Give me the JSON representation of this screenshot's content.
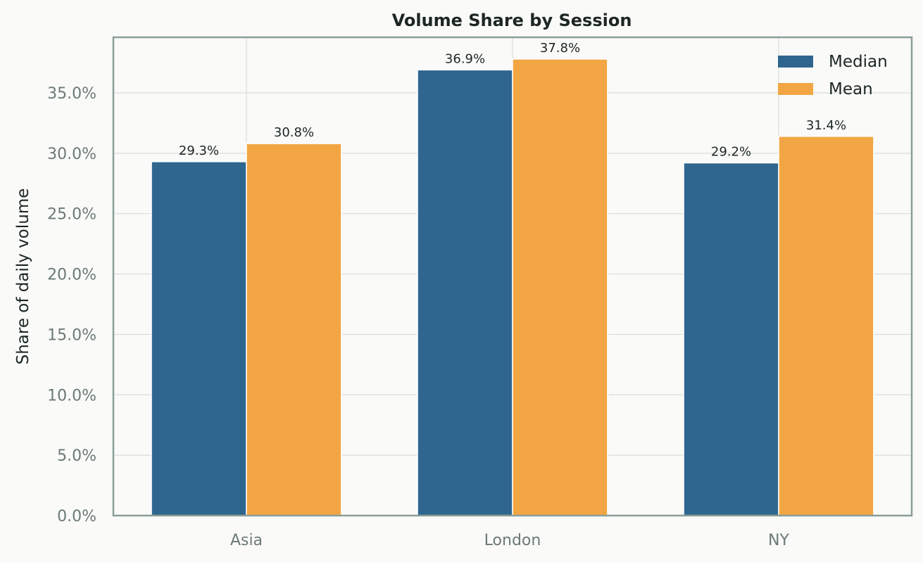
{
  "chart_data": {
    "type": "bar",
    "title": "Volume Share by Session",
    "xlabel": "",
    "ylabel": "Share of daily volume",
    "categories": [
      "Asia",
      "London",
      "NY"
    ],
    "series": [
      {
        "name": "Median",
        "values": [
          29.3,
          36.9,
          29.2
        ],
        "labels": [
          "29.3%",
          "36.9%",
          "29.2%"
        ],
        "color": "#2f668f"
      },
      {
        "name": "Mean",
        "values": [
          30.8,
          37.8,
          31.4
        ],
        "labels": [
          "30.8%",
          "37.8%",
          "31.4%"
        ],
        "color": "#f2a643"
      }
    ],
    "ylim": [
      0,
      39.6
    ],
    "yticks": [
      0,
      5,
      10,
      15,
      20,
      25,
      30,
      35
    ],
    "ytick_labels": [
      "0.0%",
      "5.0%",
      "10.0%",
      "15.0%",
      "20.0%",
      "25.0%",
      "30.0%",
      "35.0%"
    ],
    "grid": true,
    "legend_position": "top-right",
    "colors": {
      "background": "#fafaf8",
      "grid": "#d9dedb",
      "axes_border": "#8a9e97"
    }
  }
}
